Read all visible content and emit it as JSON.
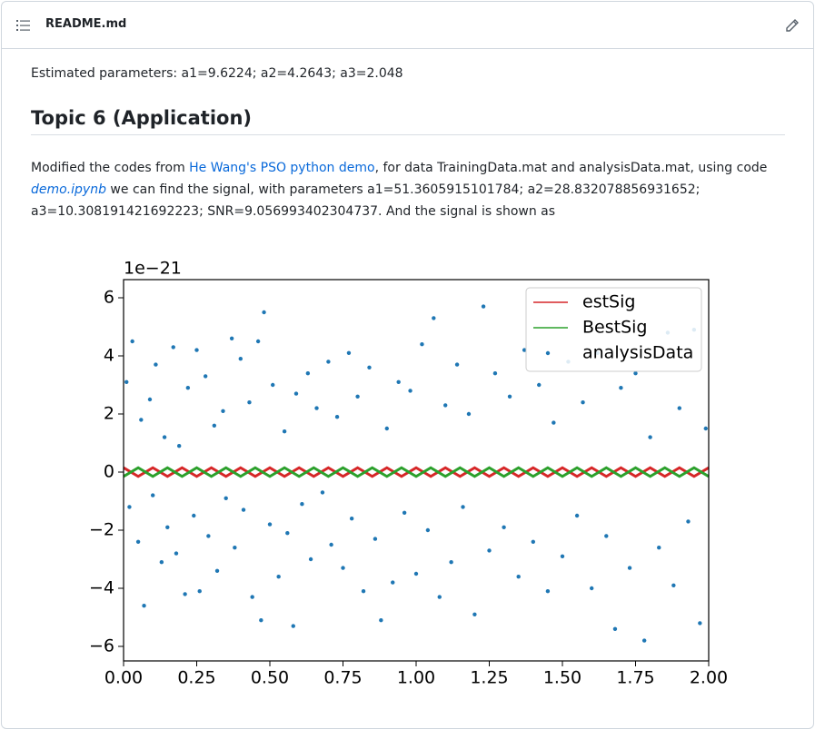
{
  "header": {
    "title": "README.md"
  },
  "paragraph1": "Estimated parameters: a1=9.6224; a2=4.2643; a3=2.048",
  "heading": "Topic 6 (Application)",
  "paragraph2": {
    "text1": "Modified the codes from ",
    "link1": "He Wang's PSO python demo",
    "text2": ", for data TrainingData.mat and analysisData.mat, using code ",
    "link2": "demo.ipynb",
    "text3": " we can find the signal, with parameters a1=51.3605915101784; a2=28.832078856931652; a3=10.308191421692223; SNR=9.056993402304737. And the signal is shown as"
  },
  "chart_data": {
    "type": "scatter",
    "y_offset_label": "1e−21",
    "xlim": [
      0,
      2
    ],
    "ylim": [
      -6.5,
      6.625
    ],
    "xticks": [
      {
        "value": 0,
        "label": "0.00"
      },
      {
        "value": 0.25,
        "label": "0.25"
      },
      {
        "value": 0.5,
        "label": "0.50"
      },
      {
        "value": 0.75,
        "label": "0.75"
      },
      {
        "value": 1,
        "label": "1.00"
      },
      {
        "value": 1.25,
        "label": "1.25"
      },
      {
        "value": 1.5,
        "label": "1.50"
      },
      {
        "value": 1.75,
        "label": "1.75"
      },
      {
        "value": 2,
        "label": "2.00"
      }
    ],
    "yticks": [
      {
        "value": -6,
        "label": "−6"
      },
      {
        "value": -4,
        "label": "−4"
      },
      {
        "value": -2,
        "label": "−2"
      },
      0,
      2,
      4,
      6
    ],
    "legend": "upper right",
    "series": [
      {
        "name": "estSig",
        "kind": "line",
        "color": "#d62728",
        "x": [
          0,
          0.05,
          0.1,
          0.15,
          0.2,
          0.25,
          0.3,
          0.35,
          0.4,
          0.45,
          0.5,
          0.55,
          0.6,
          0.65,
          0.7,
          0.75,
          0.8,
          0.85,
          0.9,
          0.95,
          1,
          1.05,
          1.1,
          1.15,
          1.2,
          1.25,
          1.3,
          1.35,
          1.4,
          1.45,
          1.5,
          1.55,
          1.6,
          1.65,
          1.7,
          1.75,
          1.8,
          1.85,
          1.9,
          1.95,
          2
        ],
        "values": [
          0.15,
          -0.15,
          0.15,
          -0.15,
          0.15,
          -0.15,
          0.15,
          -0.15,
          0.15,
          -0.15,
          0.15,
          -0.15,
          0.15,
          -0.15,
          0.15,
          -0.15,
          0.15,
          -0.15,
          0.15,
          -0.15,
          0.15,
          -0.15,
          0.15,
          -0.15,
          0.15,
          -0.15,
          0.15,
          -0.15,
          0.15,
          -0.15,
          0.15,
          -0.15,
          0.15,
          -0.15,
          0.15,
          -0.15,
          0.15,
          -0.15,
          0.15,
          -0.15,
          0.15
        ]
      },
      {
        "name": "BestSig",
        "kind": "line",
        "color": "#2ca02c",
        "x": [
          0,
          0.05,
          0.1,
          0.15,
          0.2,
          0.25,
          0.3,
          0.35,
          0.4,
          0.45,
          0.5,
          0.55,
          0.6,
          0.65,
          0.7,
          0.75,
          0.8,
          0.85,
          0.9,
          0.95,
          1,
          1.05,
          1.1,
          1.15,
          1.2,
          1.25,
          1.3,
          1.35,
          1.4,
          1.45,
          1.5,
          1.55,
          1.6,
          1.65,
          1.7,
          1.75,
          1.8,
          1.85,
          1.9,
          1.95,
          2
        ],
        "values": [
          -0.15,
          0.15,
          -0.15,
          0.15,
          -0.15,
          0.15,
          -0.15,
          0.15,
          -0.15,
          0.15,
          -0.15,
          0.15,
          -0.15,
          0.15,
          -0.15,
          0.15,
          -0.15,
          0.15,
          -0.15,
          0.15,
          -0.15,
          0.15,
          -0.15,
          0.15,
          -0.15,
          0.15,
          -0.15,
          0.15,
          -0.15,
          0.15,
          -0.15,
          0.15,
          -0.15,
          0.15,
          -0.15,
          0.15,
          -0.15,
          0.15,
          -0.15,
          0.15,
          -0.15
        ]
      },
      {
        "name": "analysisData",
        "kind": "points",
        "color": "#1f77b4",
        "x": [
          0.01,
          0.02,
          0.03,
          0.05,
          0.06,
          0.07,
          0.09,
          0.1,
          0.11,
          0.13,
          0.14,
          0.15,
          0.17,
          0.18,
          0.19,
          0.21,
          0.22,
          0.24,
          0.25,
          0.26,
          0.28,
          0.29,
          0.31,
          0.32,
          0.34,
          0.35,
          0.37,
          0.38,
          0.4,
          0.41,
          0.43,
          0.44,
          0.46,
          0.47,
          0.48,
          0.5,
          0.51,
          0.53,
          0.55,
          0.56,
          0.58,
          0.59,
          0.61,
          0.63,
          0.64,
          0.66,
          0.68,
          0.7,
          0.71,
          0.73,
          0.75,
          0.77,
          0.78,
          0.8,
          0.82,
          0.84,
          0.86,
          0.88,
          0.9,
          0.92,
          0.94,
          0.96,
          0.98,
          1.0,
          1.02,
          1.04,
          1.06,
          1.08,
          1.1,
          1.12,
          1.14,
          1.16,
          1.18,
          1.2,
          1.23,
          1.25,
          1.27,
          1.3,
          1.32,
          1.35,
          1.37,
          1.4,
          1.42,
          1.45,
          1.47,
          1.5,
          1.52,
          1.55,
          1.57,
          1.6,
          1.62,
          1.65,
          1.68,
          1.7,
          1.73,
          1.75,
          1.78,
          1.8,
          1.83,
          1.86,
          1.88,
          1.9,
          1.93,
          1.95,
          1.97,
          1.99
        ],
        "values": [
          3.1,
          -1.2,
          4.5,
          -2.4,
          1.8,
          -4.6,
          2.5,
          -0.8,
          3.7,
          -3.1,
          1.2,
          -1.9,
          4.3,
          -2.8,
          0.9,
          -4.2,
          2.9,
          -1.5,
          4.2,
          -4.1,
          3.3,
          -2.2,
          1.6,
          -3.4,
          2.1,
          -0.9,
          4.6,
          -2.6,
          3.9,
          -1.3,
          2.4,
          -4.3,
          4.5,
          -5.1,
          5.5,
          -1.8,
          3.0,
          -3.6,
          1.4,
          -2.1,
          -5.3,
          2.7,
          -1.1,
          3.4,
          -3.0,
          2.2,
          -0.7,
          3.8,
          -2.5,
          1.9,
          -3.3,
          4.1,
          -1.6,
          2.6,
          -4.1,
          3.6,
          -2.3,
          -5.1,
          1.5,
          -3.8,
          3.1,
          -1.4,
          2.8,
          -3.5,
          4.4,
          -2.0,
          5.3,
          -4.3,
          2.3,
          -3.1,
          3.7,
          -1.2,
          2.0,
          -4.9,
          5.7,
          -2.7,
          3.4,
          -1.9,
          2.6,
          -3.6,
          4.2,
          -2.4,
          3.0,
          -4.1,
          1.7,
          -2.9,
          3.8,
          -1.5,
          2.4,
          -4.0,
          4.1,
          -2.2,
          -5.4,
          2.9,
          -3.3,
          3.4,
          -5.8,
          1.2,
          -2.6,
          4.8,
          -3.9,
          2.2,
          -1.7,
          4.9,
          -5.2,
          1.5
        ]
      }
    ]
  }
}
